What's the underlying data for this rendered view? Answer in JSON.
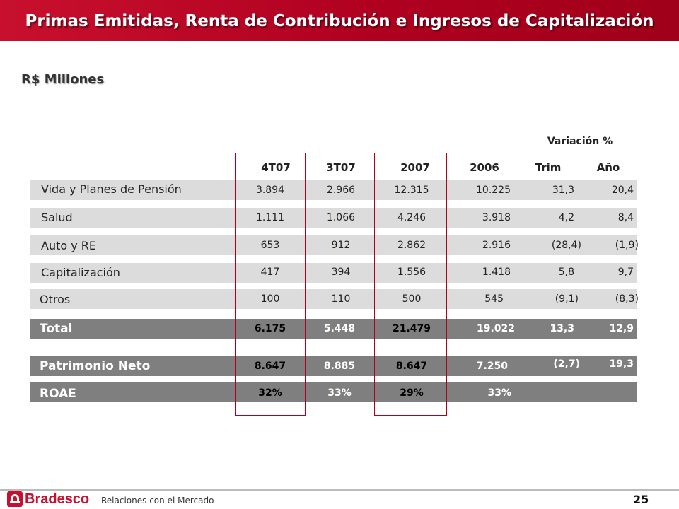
{
  "slide": {
    "title": "Primas Emitidas, Renta de Contribución e Ingresos de Capitalización",
    "subtitle": "R$ Millones",
    "variation_header": "Variación %",
    "columns": [
      "4T07",
      "3T07",
      "2007",
      "2006",
      "Trim",
      "Año"
    ]
  },
  "rows": [
    {
      "label": "Vida y Planes de Pensión",
      "values": [
        "3.894",
        "2.966",
        "12.315",
        "10.225",
        "31,3",
        "20,4"
      ]
    },
    {
      "label": "Salud",
      "values": [
        "1.111",
        "1.066",
        "4.246",
        "3.918",
        "4,2",
        "8,4"
      ]
    },
    {
      "label": "Auto y RE",
      "values": [
        "653",
        "912",
        "2.862",
        "2.916",
        "(28,4)",
        "(1,9)"
      ]
    },
    {
      "label": "Capitalización",
      "values": [
        "417",
        "394",
        "1.556",
        "1.418",
        "5,8",
        "9,7"
      ]
    },
    {
      "label": "Otros",
      "values": [
        "100",
        "110",
        "500",
        "545",
        "(9,1)",
        "(8,3)"
      ]
    },
    {
      "label": "Total",
      "values": [
        "6.175",
        "5.448",
        "21.479",
        "19.022",
        "13,3",
        "12,9"
      ]
    },
    {
      "label": "Patrimonio Neto",
      "values": [
        "8.647",
        "8.885",
        "8.647",
        "7.250",
        "(2,7)",
        "19,3"
      ]
    },
    {
      "label": "ROAE",
      "values": [
        "32%",
        "33%",
        "29%",
        "33%",
        "",
        ""
      ]
    }
  ],
  "footer": {
    "brand": "Bradesco",
    "text": "Relaciones con el Mercado",
    "page_number": "25"
  },
  "colors": {
    "banner": "#c8102e",
    "row_light": "#dcdcdc",
    "row_dark": "#7f7f7f",
    "highlight_border": "#b0001c"
  }
}
